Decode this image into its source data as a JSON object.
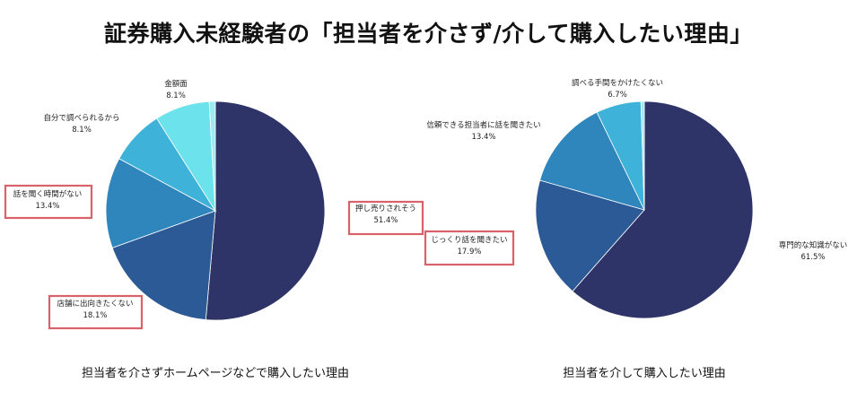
{
  "title": "証券購入未経験者の「担当者を介さず/介して購入したい理由」",
  "colors": {
    "highlight_box": "#d9626a",
    "slice_1": "#2e3467",
    "slice_2": "#2c5a96",
    "slice_3": "#2e86bd",
    "slice_4": "#3eb2d8",
    "slice_5": "#6be2ec",
    "slice_6": "#9ee9f2"
  },
  "chart_data": [
    {
      "type": "pie",
      "title": "担当者を介さずホームページなどで購入したい理由",
      "slices": [
        {
          "label": "押し売りされそう",
          "value": 51.4,
          "value_label": "51.4%",
          "highlighted": true
        },
        {
          "label": "店舗に出向きたくない",
          "value": 18.1,
          "value_label": "18.1%",
          "highlighted": true
        },
        {
          "label": "話を聞く時間がない",
          "value": 13.4,
          "value_label": "13.4%",
          "highlighted": true
        },
        {
          "label": "自分で調べられるから",
          "value": 8.1,
          "value_label": "8.1%",
          "highlighted": false
        },
        {
          "label": "金額面",
          "value": 8.1,
          "value_label": "8.1%",
          "highlighted": false
        },
        {
          "label": "",
          "value": 0.9,
          "value_label": "",
          "highlighted": false
        }
      ]
    },
    {
      "type": "pie",
      "title": "担当者を介して購入したい理由",
      "slices": [
        {
          "label": "専門的な知識がない",
          "value": 61.5,
          "value_label": "61.5%",
          "highlighted": false
        },
        {
          "label": "じっくり話を聞きたい",
          "value": 17.9,
          "value_label": "17.9%",
          "highlighted": true
        },
        {
          "label": "信頼できる担当者に話を聞きたい",
          "value": 13.4,
          "value_label": "13.4%",
          "highlighted": false
        },
        {
          "label": "調べる手間をかけたくない",
          "value": 6.7,
          "value_label": "6.7%",
          "highlighted": false
        },
        {
          "label": "",
          "value": 0.5,
          "value_label": "",
          "highlighted": false
        }
      ]
    }
  ]
}
